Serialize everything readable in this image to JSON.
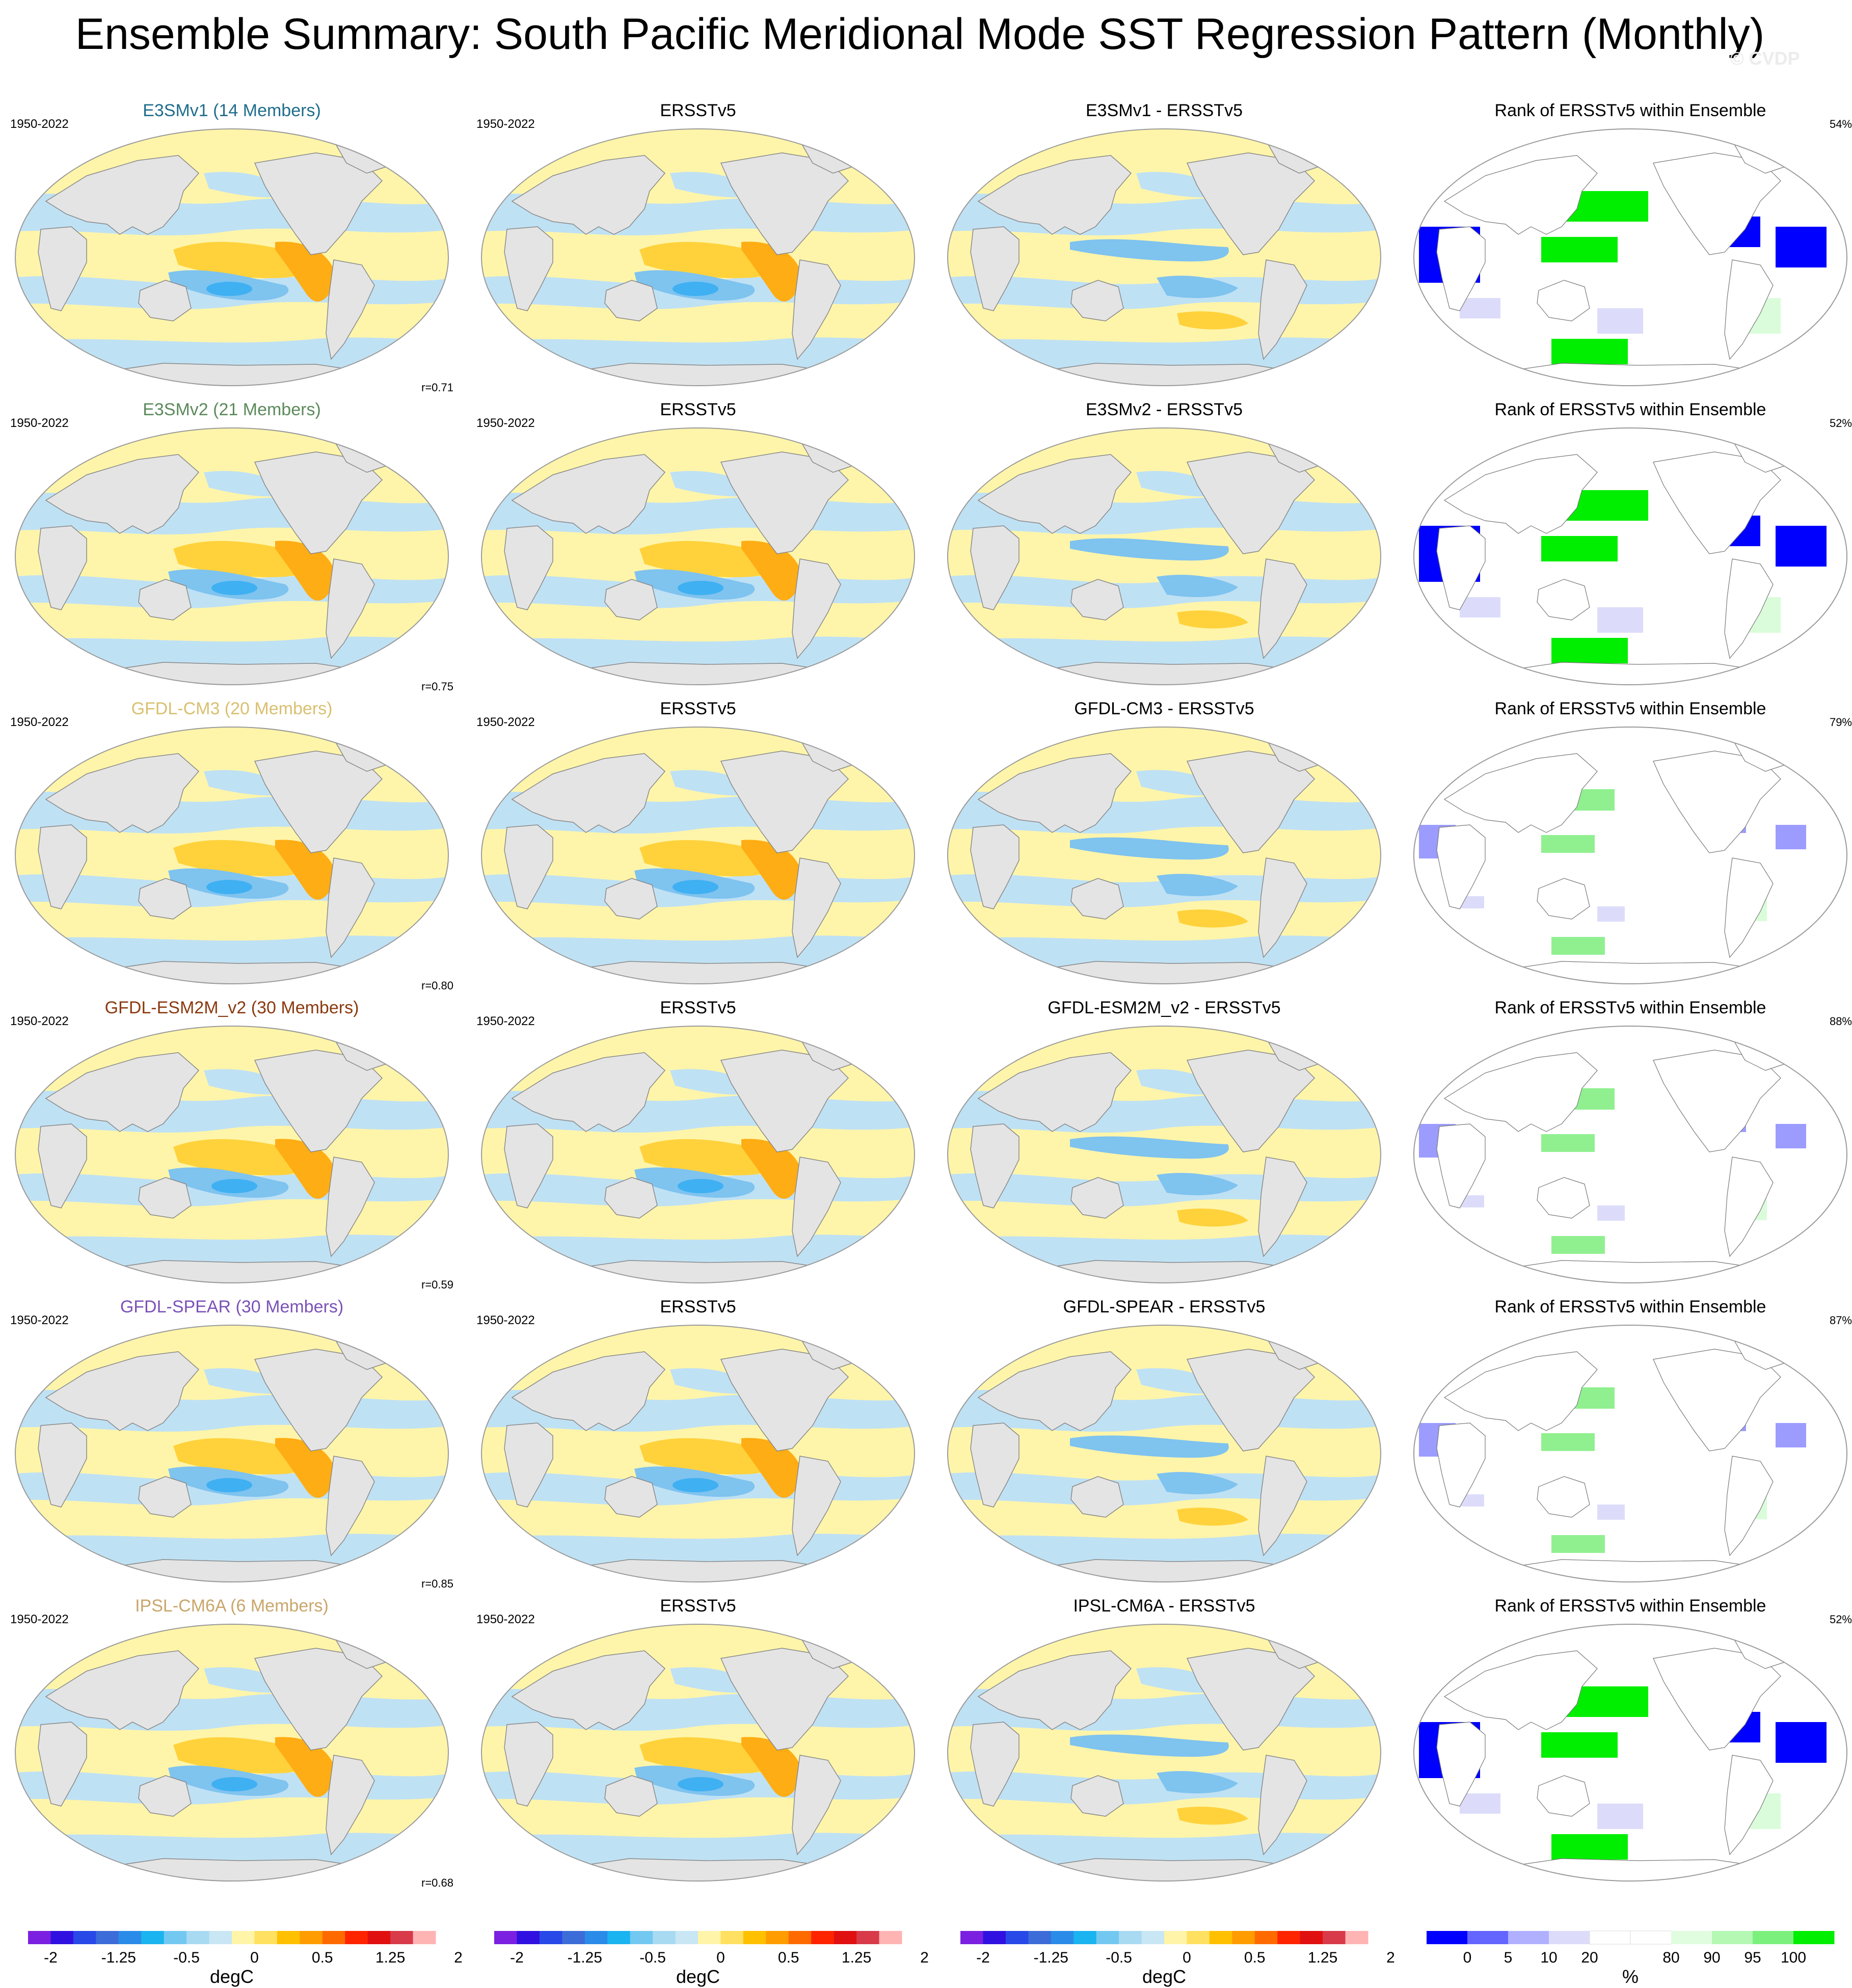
{
  "title": "Ensemble Summary: South Pacific Meridional Mode SST Regression Pattern (Monthly)",
  "watermark": "© CVDP",
  "rows": [
    {
      "model_title": "E3SMv1 (14 Members)",
      "model_color": "#1f6d8c",
      "period": "1950-2022",
      "obs_period": "1950-2022",
      "obs_title": "ERSSTv5",
      "diff_title": "E3SMv1 - ERSSTv5",
      "rank_title": "Rank of ERSSTv5 within Ensemble",
      "rank_pct": "54%",
      "r": "r=0.71"
    },
    {
      "model_title": "E3SMv2 (21 Members)",
      "model_color": "#5c8a5c",
      "period": "1950-2022",
      "obs_period": "1950-2022",
      "obs_title": "ERSSTv5",
      "diff_title": "E3SMv2 - ERSSTv5",
      "rank_title": "Rank of ERSSTv5 within Ensemble",
      "rank_pct": "52%",
      "r": "r=0.75"
    },
    {
      "model_title": "GFDL-CM3 (20 Members)",
      "model_color": "#d9c070",
      "period": "1950-2022",
      "obs_period": "1950-2022",
      "obs_title": "ERSSTv5",
      "diff_title": "GFDL-CM3 - ERSSTv5",
      "rank_title": "Rank of ERSSTv5 within Ensemble",
      "rank_pct": "79%",
      "r": "r=0.80"
    },
    {
      "model_title": "GFDL-ESM2M_v2 (30 Members)",
      "model_color": "#8b3a10",
      "period": "1950-2022",
      "obs_period": "1950-2022",
      "obs_title": "ERSSTv5",
      "diff_title": "GFDL-ESM2M_v2 - ERSSTv5",
      "rank_title": "Rank of ERSSTv5 within Ensemble",
      "rank_pct": "88%",
      "r": "r=0.59"
    },
    {
      "model_title": "GFDL-SPEAR (30 Members)",
      "model_color": "#7b52b8",
      "period": "1950-2022",
      "obs_period": "1950-2022",
      "obs_title": "ERSSTv5",
      "diff_title": "GFDL-SPEAR - ERSSTv5",
      "rank_title": "Rank of ERSSTv5 within Ensemble",
      "rank_pct": "87%",
      "r": "r=0.85"
    },
    {
      "model_title": "IPSL-CM6A (6 Members)",
      "model_color": "#c9a66b",
      "period": "1950-2022",
      "obs_period": "1950-2022",
      "obs_title": "ERSSTv5",
      "diff_title": "IPSL-CM6A - ERSSTv5",
      "rank_title": "Rank of ERSSTv5 within Ensemble",
      "rank_pct": "52%",
      "r": "r=0.68"
    }
  ],
  "sst_colorbar": {
    "colors": [
      "#7b20e0",
      "#3010e0",
      "#2848e8",
      "#3c6cd8",
      "#2a8ce8",
      "#1ab4f0",
      "#72c8f0",
      "#a8daf2",
      "#c8e6f4",
      "#fff4a8",
      "#ffe060",
      "#ffc000",
      "#ff9c00",
      "#ff6a00",
      "#ff2400",
      "#e01010",
      "#d83a4a",
      "#ffb4b4"
    ],
    "labels": [
      "-2",
      "-1.25",
      "-0.5",
      "0",
      "0.5",
      "1.25",
      "2"
    ],
    "unit": "degC"
  },
  "rank_colorbar": {
    "colors": [
      "#0000ff",
      "#6464ff",
      "#b0b0ff",
      "#dcdcfa",
      "#ffffff",
      "#ffffff",
      "#e0fde0",
      "#b4f8b4",
      "#7cf07c",
      "#00ee00"
    ],
    "labels": [
      "0",
      "5",
      "10",
      "20",
      "80",
      "90",
      "95",
      "100"
    ],
    "unit": "%"
  },
  "palette": {
    "land": "#e4e4e4",
    "coast": "#888888",
    "warm_weak": "#fff5aa",
    "warm_mid": "#ffd23c",
    "warm_strong": "#ffad14",
    "cool_weak": "#bfe1f4",
    "cool_mid": "#7fc3ef",
    "cool_strong": "#3fb0f2",
    "rank_low": "#0000ff",
    "rank_lowmid": "#9c9cff",
    "rank_lowweak": "#dcdcfa",
    "rank_high": "#00ee00",
    "rank_highmid": "#90f090",
    "rank_highweak": "#dafcda"
  }
}
